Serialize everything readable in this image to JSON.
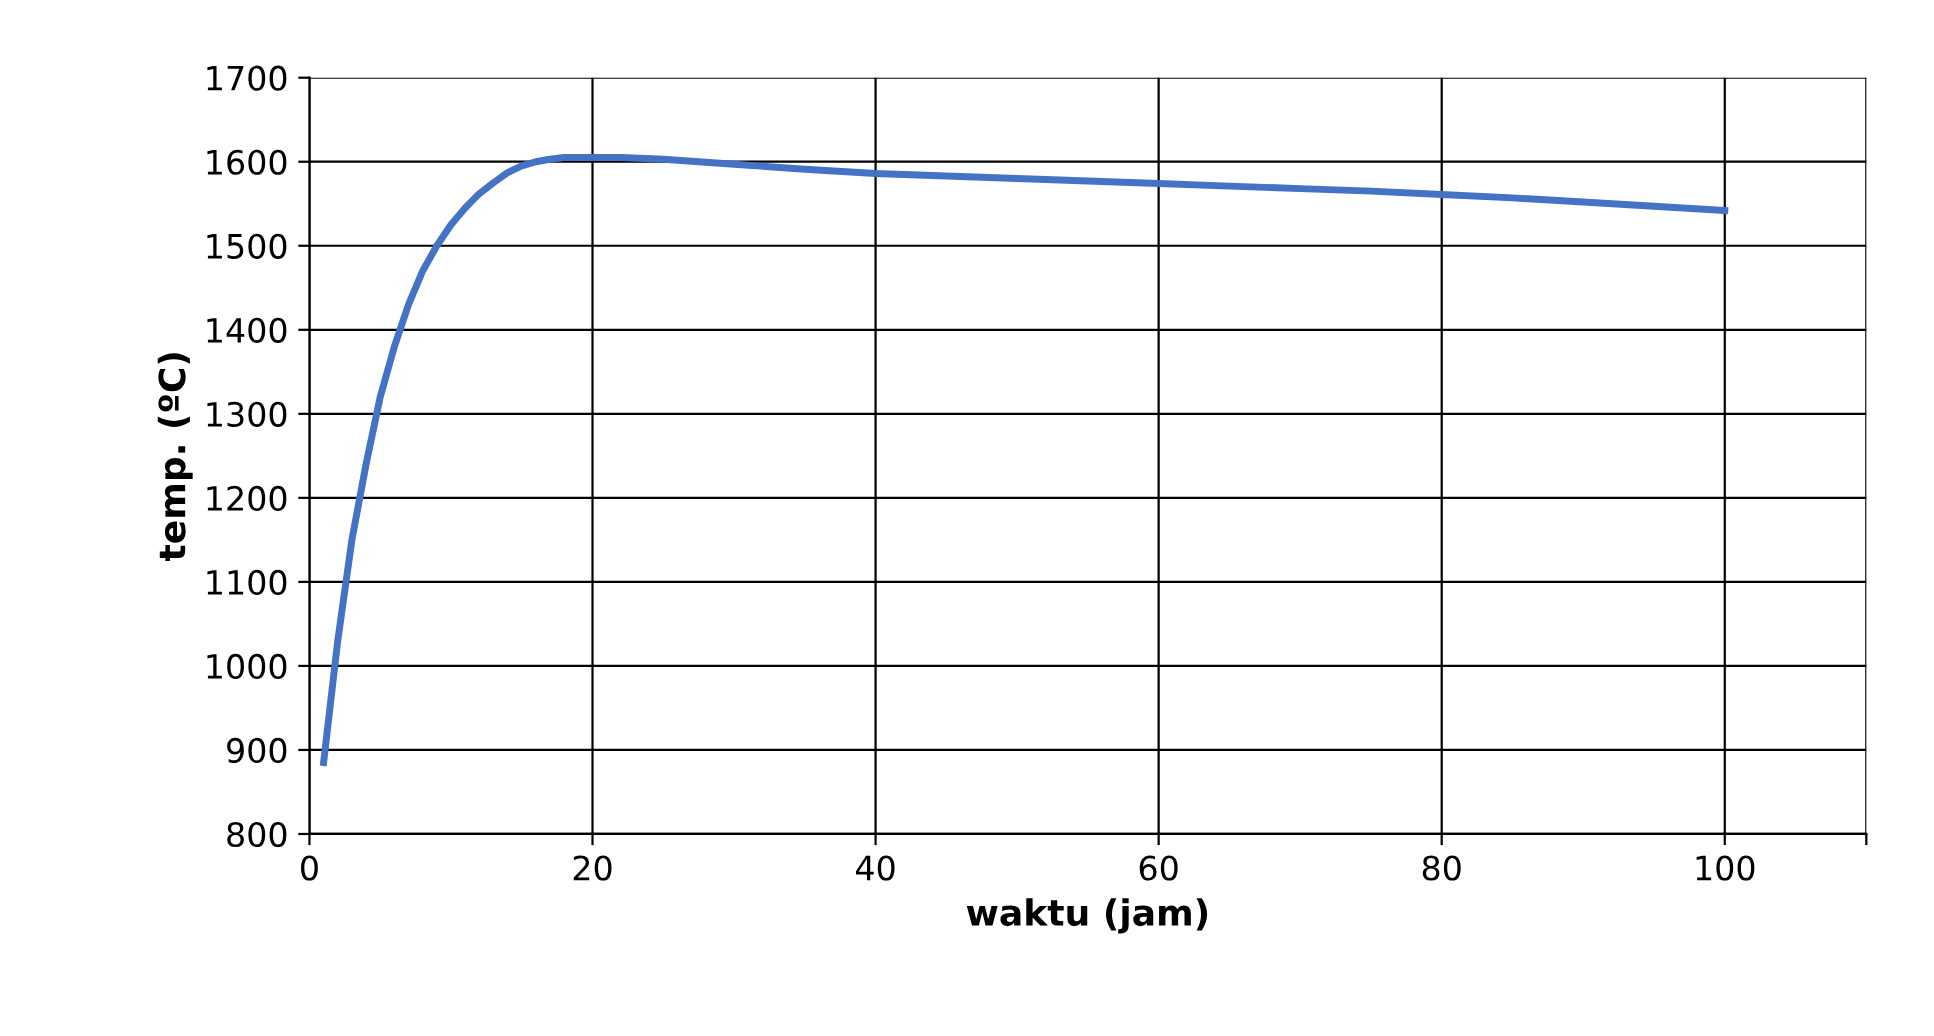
{
  "chart_data": {
    "type": "line",
    "xlabel": "waktu (jam)",
    "ylabel": "temp. (ºC)",
    "x": [
      1,
      2,
      3,
      4,
      5,
      6,
      7,
      8,
      9,
      10,
      11,
      12,
      13,
      14,
      15,
      16,
      17,
      18,
      20,
      22,
      25,
      30,
      35,
      40,
      45,
      50,
      55,
      60,
      65,
      70,
      75,
      80,
      85,
      90,
      95,
      100
    ],
    "series": [
      {
        "color": "#4472c4",
        "values": [
          885,
          1030,
          1150,
          1240,
          1320,
          1380,
          1430,
          1470,
          1500,
          1525,
          1545,
          1562,
          1575,
          1587,
          1595,
          1600,
          1603,
          1605,
          1605,
          1605,
          1603,
          1597,
          1591,
          1586,
          1583,
          1580,
          1577,
          1574,
          1571,
          1568,
          1565,
          1561,
          1557,
          1552,
          1547,
          1542
        ]
      }
    ],
    "xlim": [
      0,
      110
    ],
    "xticks": [
      0,
      20,
      40,
      60,
      80,
      100,
      {
        "value": 110,
        "label": null
      }
    ],
    "ylim": [
      800,
      1700
    ],
    "yticks": [
      800,
      900,
      1000,
      1100,
      1200,
      1300,
      1400,
      1500,
      1600,
      1700
    ],
    "grid": true,
    "marker": "none",
    "line_style": "solid"
  }
}
